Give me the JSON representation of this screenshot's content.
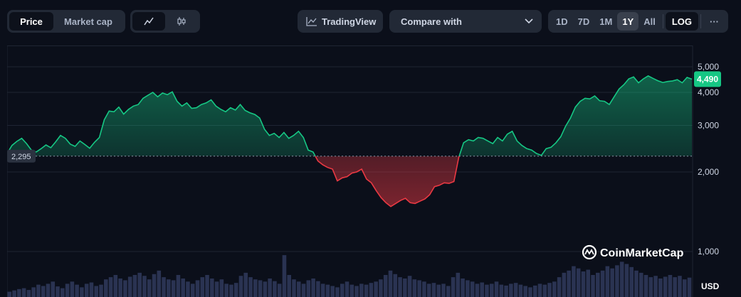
{
  "toolbar": {
    "price_label": "Price",
    "market_cap_label": "Market cap",
    "tradingview_label": "TradingView",
    "compare_label": "Compare with",
    "ranges": [
      "1D",
      "7D",
      "1M",
      "1Y",
      "All"
    ],
    "active_range": "1Y",
    "log_label": "LOG",
    "more_label": "···"
  },
  "icons": {
    "line_chart": "line-chart-icon",
    "candlestick": "candlestick-icon",
    "tradingview": "tradingview-icon",
    "dropdown": "chevron-down-icon",
    "more": "more-icon",
    "brand": "coinmarketcap-logo-icon"
  },
  "brand": {
    "name": "CoinMarketCap"
  },
  "colors": {
    "up": "#16c784",
    "down": "#ea3943",
    "current_badge": "#16c784",
    "baseline_badge": "#2b3240"
  },
  "chart_data": {
    "type": "area",
    "scale": "log",
    "currency_label": "USD",
    "y_ticks": [
      5000,
      4000,
      3000,
      2000,
      1000
    ],
    "y_tick_labels": [
      "5,000",
      "4,000",
      "3,000",
      "2,000",
      "1,000"
    ],
    "ylim": [
      1000,
      5500
    ],
    "baseline": 2295,
    "baseline_label": "2,295",
    "current_value": 4490,
    "current_label": "4,490",
    "grid": true,
    "price": [
      2350,
      2520,
      2610,
      2680,
      2560,
      2420,
      2380,
      2450,
      2530,
      2470,
      2600,
      2750,
      2680,
      2550,
      2500,
      2620,
      2540,
      2460,
      2590,
      2700,
      3150,
      3400,
      3380,
      3520,
      3310,
      3450,
      3550,
      3600,
      3800,
      3900,
      4000,
      3850,
      3980,
      3920,
      4020,
      3700,
      3550,
      3650,
      3480,
      3500,
      3600,
      3650,
      3750,
      3550,
      3450,
      3380,
      3500,
      3430,
      3600,
      3420,
      3350,
      3300,
      3200,
      2900,
      2750,
      2800,
      2700,
      2820,
      2680,
      2750,
      2850,
      2700,
      2420,
      2380,
      2200,
      2130,
      2080,
      2050,
      1850,
      1900,
      1920,
      1980,
      2000,
      2050,
      1880,
      1820,
      1700,
      1600,
      1530,
      1480,
      1520,
      1560,
      1590,
      1530,
      1520,
      1550,
      1580,
      1640,
      1760,
      1780,
      1820,
      1810,
      1840,
      2270,
      2580,
      2650,
      2620,
      2700,
      2680,
      2620,
      2560,
      2700,
      2620,
      2780,
      2850,
      2620,
      2520,
      2450,
      2420,
      2350,
      2310,
      2450,
      2480,
      2580,
      2720,
      2980,
      3200,
      3520,
      3700,
      3800,
      3780,
      3880,
      3720,
      3700,
      3600,
      3850,
      4120,
      4280,
      4500,
      4580,
      4350,
      4500,
      4620,
      4520,
      4430,
      4360,
      4400,
      4420,
      4470,
      4350,
      4560,
      4490
    ],
    "volume": [
      0.12,
      0.15,
      0.18,
      0.2,
      0.16,
      0.22,
      0.28,
      0.25,
      0.3,
      0.35,
      0.24,
      0.2,
      0.3,
      0.35,
      0.28,
      0.22,
      0.3,
      0.33,
      0.25,
      0.28,
      0.4,
      0.45,
      0.5,
      0.42,
      0.38,
      0.46,
      0.5,
      0.55,
      0.48,
      0.4,
      0.52,
      0.6,
      0.45,
      0.4,
      0.38,
      0.5,
      0.42,
      0.35,
      0.3,
      0.38,
      0.45,
      0.5,
      0.42,
      0.35,
      0.4,
      0.3,
      0.28,
      0.32,
      0.48,
      0.55,
      0.45,
      0.4,
      0.38,
      0.35,
      0.42,
      0.36,
      0.3,
      0.95,
      0.5,
      0.4,
      0.35,
      0.3,
      0.38,
      0.42,
      0.36,
      0.3,
      0.28,
      0.25,
      0.22,
      0.3,
      0.35,
      0.28,
      0.25,
      0.3,
      0.28,
      0.32,
      0.35,
      0.4,
      0.5,
      0.6,
      0.52,
      0.45,
      0.42,
      0.48,
      0.4,
      0.38,
      0.35,
      0.3,
      0.32,
      0.28,
      0.3,
      0.25,
      0.45,
      0.55,
      0.42,
      0.38,
      0.35,
      0.3,
      0.33,
      0.28,
      0.3,
      0.35,
      0.28,
      0.26,
      0.3,
      0.32,
      0.28,
      0.25,
      0.22,
      0.26,
      0.3,
      0.28,
      0.32,
      0.35,
      0.45,
      0.55,
      0.6,
      0.7,
      0.65,
      0.58,
      0.62,
      0.5,
      0.55,
      0.6,
      0.7,
      0.65,
      0.72,
      0.8,
      0.75,
      0.68,
      0.6,
      0.55,
      0.5,
      0.45,
      0.48,
      0.42,
      0.46,
      0.5,
      0.45,
      0.48,
      0.4,
      0.44
    ]
  }
}
